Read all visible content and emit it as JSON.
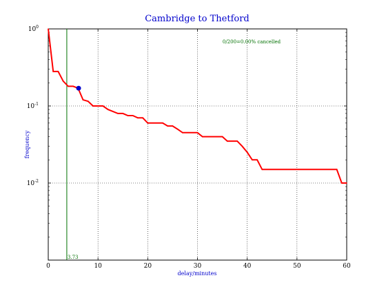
{
  "chart_data": {
    "type": "line",
    "title": "Cambridge to Thetford",
    "xlabel": "delay/minutes",
    "ylabel": "frequency",
    "xlim": [
      0,
      60
    ],
    "ylim": [
      0.001,
      1
    ],
    "yscale": "log",
    "grid": true,
    "x_ticks": [
      0,
      10,
      20,
      30,
      40,
      50,
      60
    ],
    "y_ticks": [
      {
        "value": 1,
        "base": "10",
        "exp": "0"
      },
      {
        "value": 0.1,
        "base": "10",
        "exp": "-1"
      },
      {
        "value": 0.01,
        "base": "10",
        "exp": "-2"
      }
    ],
    "series": [
      {
        "color": "#ff0000",
        "points": [
          [
            0,
            1.0
          ],
          [
            1,
            0.28
          ],
          [
            2,
            0.28
          ],
          [
            3,
            0.21
          ],
          [
            4,
            0.18
          ],
          [
            5,
            0.18
          ],
          [
            6,
            0.17
          ],
          [
            7,
            0.12
          ],
          [
            8,
            0.115
          ],
          [
            9,
            0.1
          ],
          [
            11,
            0.1
          ],
          [
            12,
            0.09
          ],
          [
            14,
            0.08
          ],
          [
            15,
            0.08
          ],
          [
            16,
            0.075
          ],
          [
            17,
            0.075
          ],
          [
            18,
            0.07
          ],
          [
            19,
            0.07
          ],
          [
            20,
            0.06
          ],
          [
            23,
            0.06
          ],
          [
            24,
            0.055
          ],
          [
            25,
            0.055
          ],
          [
            26,
            0.05
          ],
          [
            27,
            0.045
          ],
          [
            30,
            0.045
          ],
          [
            31,
            0.04
          ],
          [
            35,
            0.04
          ],
          [
            36,
            0.035
          ],
          [
            38,
            0.035
          ],
          [
            39,
            0.03
          ],
          [
            40,
            0.025
          ],
          [
            41,
            0.02
          ],
          [
            42,
            0.02
          ],
          [
            43,
            0.015
          ],
          [
            58,
            0.015
          ],
          [
            59,
            0.01
          ],
          [
            60,
            0.01
          ]
        ]
      }
    ],
    "marker": {
      "x": 6.1,
      "y": 0.17,
      "color": "#0000cc"
    },
    "vline": {
      "x": 3.73,
      "label": "3.73",
      "color": "#007000"
    },
    "annotation": {
      "text": "0/200=0.00% cancelled",
      "color": "#007000"
    }
  }
}
